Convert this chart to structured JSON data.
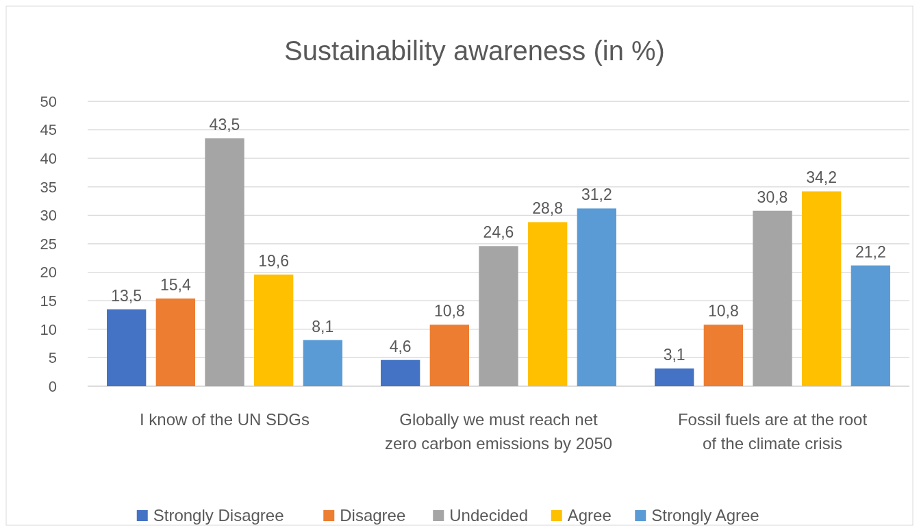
{
  "chart_data": {
    "type": "bar",
    "title": "Sustainability awareness (in %)",
    "categories": [
      "I know of the UN SDGs",
      "Globally we must reach net zero carbon emissions by 2050",
      "Fossil fuels are at the root of the climate crisis"
    ],
    "series": [
      {
        "name": "Strongly Disagree",
        "color": "#4472c4",
        "values": [
          13.5,
          4.6,
          3.1
        ],
        "value_labels": [
          "13,5",
          "4,6",
          "3,1"
        ]
      },
      {
        "name": "Disagree",
        "color": "#ed7d31",
        "values": [
          15.4,
          10.8,
          10.8
        ],
        "value_labels": [
          "15,4",
          "10,8",
          "10,8"
        ]
      },
      {
        "name": "Undecided",
        "color": "#a5a5a5",
        "values": [
          43.5,
          24.6,
          30.8
        ],
        "value_labels": [
          "43,5",
          "24,6",
          "30,8"
        ]
      },
      {
        "name": "Agree",
        "color": "#ffc000",
        "values": [
          19.6,
          28.8,
          34.2
        ],
        "value_labels": [
          "19,6",
          "28,8",
          "34,2"
        ]
      },
      {
        "name": "Strongly Agree",
        "color": "#5b9bd5",
        "values": [
          8.1,
          31.2,
          21.2
        ],
        "value_labels": [
          "8,1",
          "31,2",
          "21,2"
        ]
      }
    ],
    "ylim": [
      0,
      50
    ],
    "yticks": [
      0,
      5,
      10,
      15,
      20,
      25,
      30,
      35,
      40,
      45,
      50
    ],
    "grid": "y",
    "legend": "bottom"
  }
}
